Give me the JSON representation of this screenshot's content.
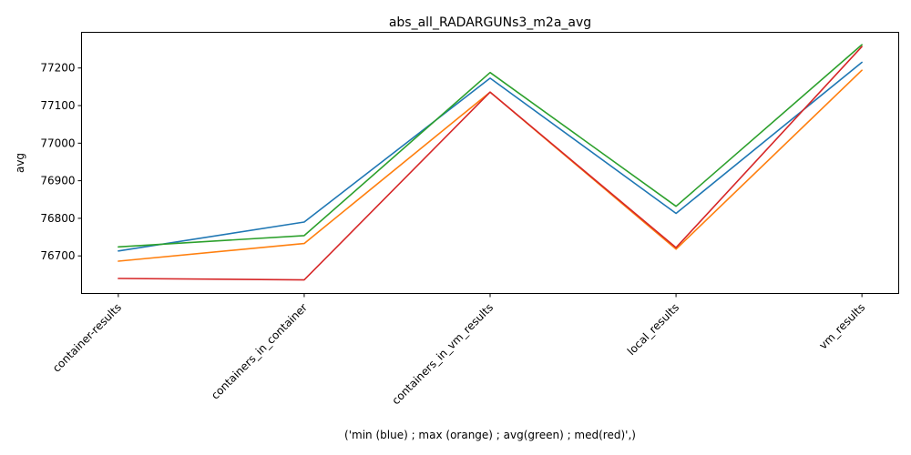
{
  "chart_data": {
    "type": "line",
    "title": "abs_all_RADARGUNs3_m2a_avg",
    "xlabel": "('min (blue) ; max (orange) ; avg(green) ; med(red)',)",
    "ylabel": "avg",
    "categories": [
      "container-results",
      "containers_in_container",
      "containers_in_vm_results",
      "local_results",
      "vm_results"
    ],
    "ylim": [
      76600,
      77295
    ],
    "yticks": [
      76700,
      76800,
      76900,
      77000,
      77100,
      77200
    ],
    "grid": false,
    "legend": "none",
    "series": [
      {
        "color": "#1f77b4",
        "values": [
          76713,
          76790,
          77173,
          76813,
          77215
        ]
      },
      {
        "color": "#ff7f0e",
        "values": [
          76686,
          76733,
          77136,
          76718,
          77194
        ]
      },
      {
        "color": "#2ca02c",
        "values": [
          76724,
          76754,
          77188,
          76832,
          77262
        ]
      },
      {
        "color": "#d62728",
        "values": [
          76640,
          76636,
          77136,
          76722,
          77257
        ]
      }
    ]
  }
}
